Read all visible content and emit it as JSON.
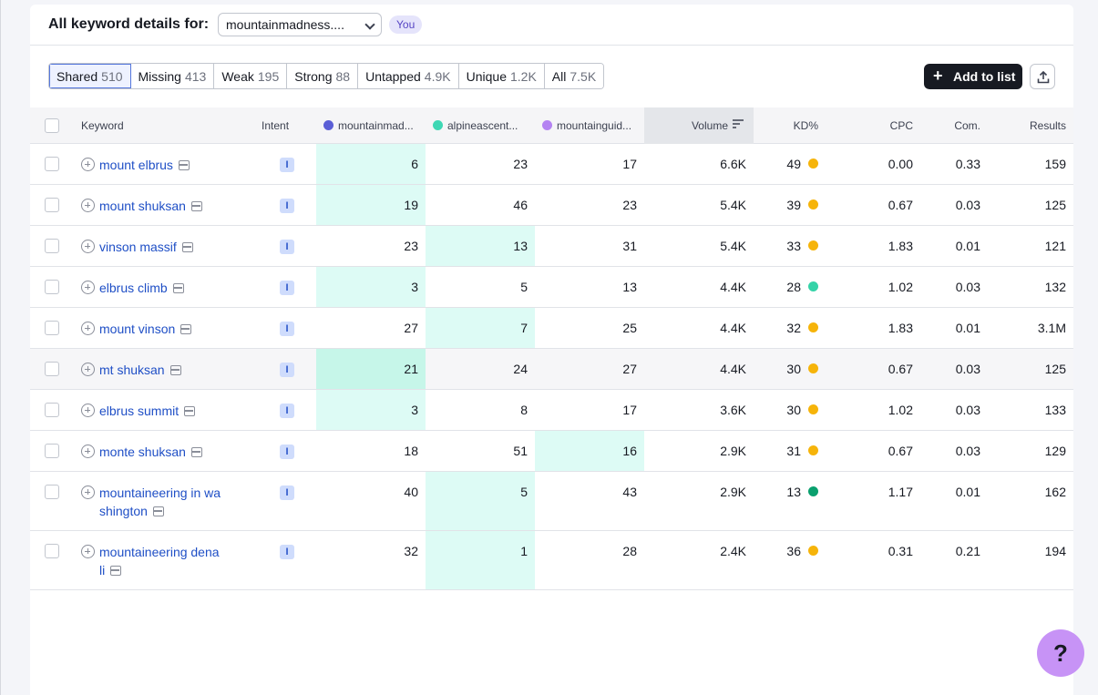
{
  "header": {
    "title": "All keyword details for:",
    "domain_value": "mountainmadness....",
    "you_badge": "You"
  },
  "filters": [
    {
      "label": "Shared",
      "count": "510",
      "active": true
    },
    {
      "label": "Missing",
      "count": "413"
    },
    {
      "label": "Weak",
      "count": "195"
    },
    {
      "label": "Strong",
      "count": "88"
    },
    {
      "label": "Untapped",
      "count": "4.9K"
    },
    {
      "label": "Unique",
      "count": "1.2K"
    },
    {
      "label": "All",
      "count": "7.5K"
    }
  ],
  "toolbar": {
    "add_to_list": "Add to list",
    "export_icon": "export-icon"
  },
  "columns": {
    "keyword": "Keyword",
    "intent": "Intent",
    "d1": "mountainmad...",
    "d2": "alpineascent...",
    "d3": "mountainguid...",
    "volume": "Volume",
    "kd": "KD%",
    "cpc": "CPC",
    "com": "Com.",
    "results": "Results"
  },
  "colors": {
    "d1": "#5b5fd6",
    "d2": "#3ed7b4",
    "d3": "#b483f2",
    "kd_yellow": "#f6b40a",
    "kd_teal": "#35d3a8",
    "kd_green": "#0aa06e",
    "highlight": "#ddfbf5"
  },
  "rows": [
    {
      "keyword_lines": [
        "mount elbrus"
      ],
      "intent": "I",
      "d1": "6",
      "d2": "23",
      "d3": "17",
      "best": 1,
      "volume": "6.6K",
      "kd": "49",
      "kd_color": "#f6b40a",
      "cpc": "0.00",
      "com": "0.33",
      "results": "159"
    },
    {
      "keyword_lines": [
        "mount shuksan"
      ],
      "intent": "I",
      "d1": "19",
      "d2": "46",
      "d3": "23",
      "best": 1,
      "volume": "5.4K",
      "kd": "39",
      "kd_color": "#f6b40a",
      "cpc": "0.67",
      "com": "0.03",
      "results": "125"
    },
    {
      "keyword_lines": [
        "vinson massif"
      ],
      "intent": "I",
      "d1": "23",
      "d2": "13",
      "d3": "31",
      "best": 2,
      "volume": "5.4K",
      "kd": "33",
      "kd_color": "#f6b40a",
      "cpc": "1.83",
      "com": "0.01",
      "results": "121"
    },
    {
      "keyword_lines": [
        "elbrus climb"
      ],
      "intent": "I",
      "d1": "3",
      "d2": "5",
      "d3": "13",
      "best": 1,
      "volume": "4.4K",
      "kd": "28",
      "kd_color": "#35d3a8",
      "cpc": "1.02",
      "com": "0.03",
      "results": "132"
    },
    {
      "keyword_lines": [
        "mount vinson"
      ],
      "intent": "I",
      "d1": "27",
      "d2": "7",
      "d3": "25",
      "best": 2,
      "volume": "4.4K",
      "kd": "32",
      "kd_color": "#f6b40a",
      "cpc": "1.83",
      "com": "0.01",
      "results": "3.1M"
    },
    {
      "keyword_lines": [
        "mt shuksan"
      ],
      "intent": "I",
      "d1": "21",
      "d2": "24",
      "d3": "27",
      "best": 1,
      "volume": "4.4K",
      "kd": "30",
      "kd_color": "#f6b40a",
      "cpc": "0.67",
      "com": "0.03",
      "results": "125",
      "hover": true
    },
    {
      "keyword_lines": [
        "elbrus summit"
      ],
      "intent": "I",
      "d1": "3",
      "d2": "8",
      "d3": "17",
      "best": 1,
      "volume": "3.6K",
      "kd": "30",
      "kd_color": "#f6b40a",
      "cpc": "1.02",
      "com": "0.03",
      "results": "133"
    },
    {
      "keyword_lines": [
        "monte shuksan"
      ],
      "intent": "I",
      "d1": "18",
      "d2": "51",
      "d3": "16",
      "best": 3,
      "volume": "2.9K",
      "kd": "31",
      "kd_color": "#f6b40a",
      "cpc": "0.67",
      "com": "0.03",
      "results": "129"
    },
    {
      "keyword_lines": [
        "mountaineering in wa",
        "shington"
      ],
      "intent": "I",
      "d1": "40",
      "d2": "5",
      "d3": "43",
      "best": 2,
      "volume": "2.9K",
      "kd": "13",
      "kd_color": "#0aa06e",
      "cpc": "1.17",
      "com": "0.01",
      "results": "162"
    },
    {
      "keyword_lines": [
        "mountaineering dena",
        "li"
      ],
      "intent": "I",
      "d1": "32",
      "d2": "1",
      "d3": "28",
      "best": 2,
      "volume": "2.4K",
      "kd": "36",
      "kd_color": "#f6b40a",
      "cpc": "0.31",
      "com": "0.21",
      "results": "194"
    }
  ],
  "help_label": "?"
}
